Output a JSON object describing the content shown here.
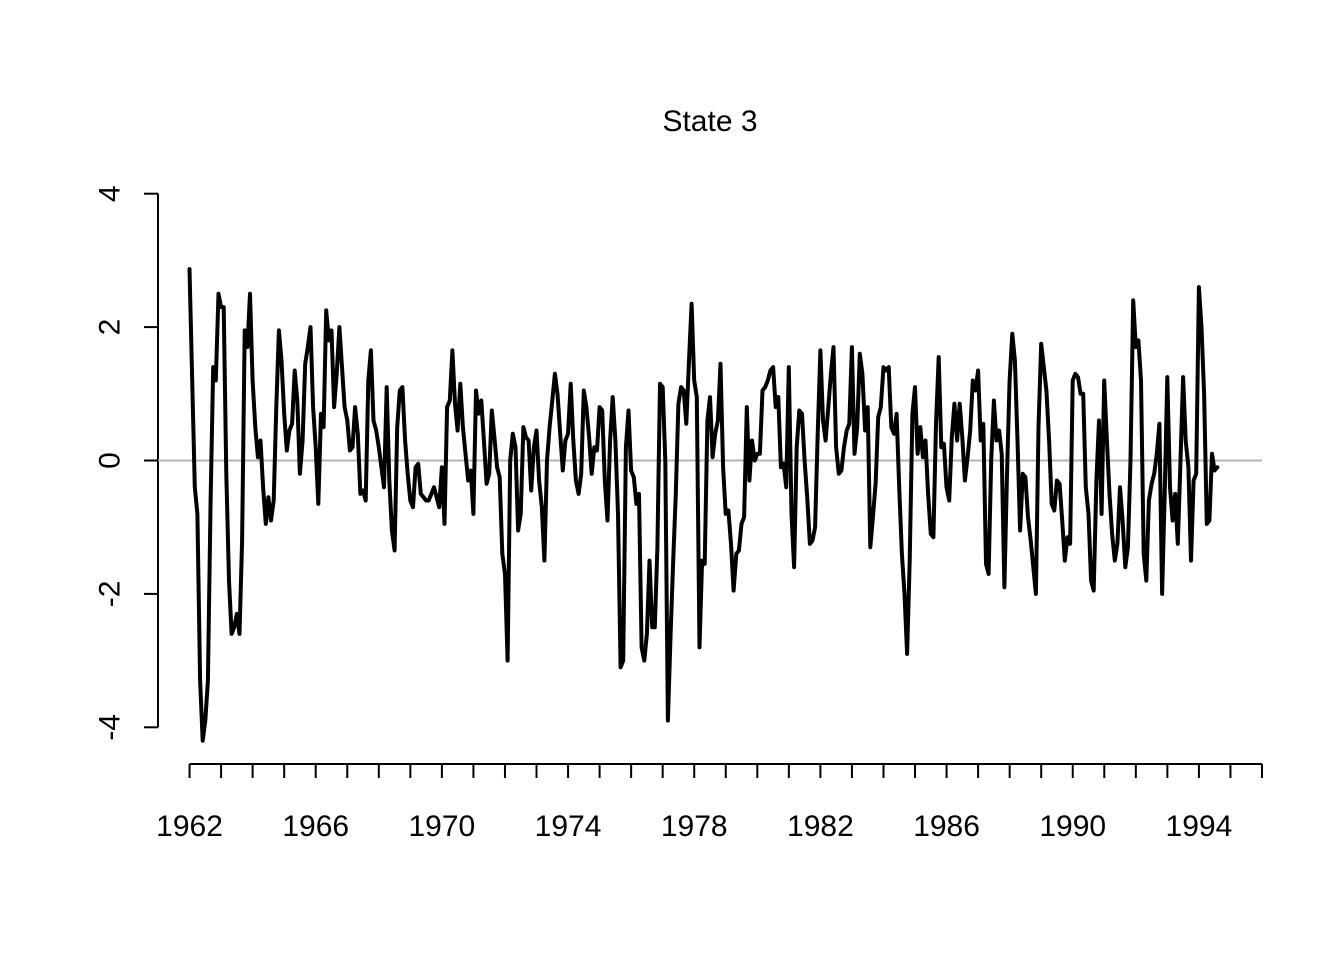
{
  "chart_data": {
    "type": "line",
    "title": "State 3",
    "xlabel": "",
    "ylabel": "",
    "xlim": [
      1961.0,
      1996.0
    ],
    "ylim": [
      -4.55,
      4.55
    ],
    "x_ticks": [
      1962,
      1963,
      1964,
      1965,
      1966,
      1967,
      1968,
      1969,
      1970,
      1971,
      1972,
      1973,
      1974,
      1975,
      1976,
      1977,
      1978,
      1979,
      1980,
      1981,
      1982,
      1983,
      1984,
      1985,
      1986,
      1987,
      1988,
      1989,
      1990,
      1991,
      1992,
      1993,
      1994,
      1995,
      1996
    ],
    "x_tick_labels": [
      "1962",
      "1966",
      "1970",
      "1974",
      "1978",
      "1982",
      "1986",
      "1990",
      "1994"
    ],
    "y_ticks": [
      -4,
      -2,
      0,
      2,
      4
    ],
    "y_tick_labels": [
      "-4",
      "-2",
      "0",
      "2",
      "4"
    ],
    "reference_line": {
      "y": 0,
      "color": "#b3b3b3"
    },
    "line_color": "#000000",
    "grid": false,
    "series": [
      {
        "x_start": 1962.0,
        "x_step": 0.08333,
        "values": [
          2.87,
          1.2,
          -0.4,
          -0.8,
          -3.3,
          -4.2,
          -3.9,
          -3.3,
          -0.6,
          1.4,
          1.2,
          2.5,
          2.3,
          2.3,
          -0.2,
          -1.8,
          -2.6,
          -2.5,
          -2.3,
          -2.6,
          -1.2,
          1.95,
          1.7,
          2.5,
          1.2,
          0.5,
          0.05,
          0.3,
          -0.4,
          -0.95,
          -0.55,
          -0.9,
          -0.6,
          0.8,
          1.95,
          1.5,
          0.7,
          0.15,
          0.45,
          0.55,
          1.35,
          0.9,
          -0.2,
          0.3,
          1.45,
          1.7,
          2.0,
          0.8,
          0.2,
          -0.65,
          0.7,
          0.5,
          2.25,
          1.8,
          1.95,
          0.8,
          1.3,
          2.0,
          1.4,
          0.8,
          0.6,
          0.15,
          0.2,
          0.8,
          0.4,
          -0.5,
          -0.45,
          -0.6,
          1.2,
          1.65,
          0.6,
          0.45,
          0.2,
          -0.1,
          -0.4,
          1.1,
          -0.3,
          -1.05,
          -1.35,
          0.5,
          1.05,
          1.1,
          0.3,
          -0.2,
          -0.6,
          -0.7,
          -0.1,
          -0.05,
          -0.5,
          -0.55,
          -0.6,
          -0.6,
          -0.5,
          -0.4,
          -0.55,
          -0.7,
          -0.1,
          -0.95,
          0.8,
          0.9,
          1.65,
          0.85,
          0.45,
          1.15,
          0.5,
          0.1,
          -0.3,
          -0.15,
          -0.8,
          1.05,
          0.7,
          0.9,
          0.3,
          -0.35,
          -0.2,
          0.75,
          0.35,
          -0.1,
          -0.25,
          -1.4,
          -1.7,
          -3.0,
          0.0,
          0.4,
          0.2,
          -1.05,
          -0.8,
          0.5,
          0.35,
          0.3,
          -0.45,
          0.2,
          0.45,
          -0.3,
          -0.7,
          -1.5,
          0.0,
          0.5,
          0.9,
          1.3,
          1.0,
          0.4,
          -0.15,
          0.3,
          0.4,
          1.15,
          0.3,
          -0.3,
          -0.5,
          -0.2,
          1.05,
          0.8,
          0.35,
          -0.2,
          0.2,
          0.15,
          0.8,
          0.75,
          -0.3,
          -0.9,
          0.3,
          0.95,
          0.3,
          -0.8,
          -3.1,
          -3.0,
          0.2,
          0.75,
          -0.15,
          -0.25,
          -0.65,
          -0.5,
          -2.8,
          -3.0,
          -2.6,
          -1.5,
          -2.5,
          -2.5,
          -1.3,
          1.15,
          1.1,
          0.0,
          -3.9,
          -2.6,
          -1.5,
          -0.5,
          0.85,
          1.1,
          1.05,
          0.55,
          1.5,
          2.35,
          1.2,
          0.95,
          -2.8,
          -1.5,
          -1.55,
          0.6,
          0.95,
          0.05,
          0.4,
          0.6,
          1.45,
          -0.1,
          -0.8,
          -0.75,
          -1.25,
          -1.95,
          -1.4,
          -1.35,
          -0.95,
          -0.85,
          0.8,
          -0.3,
          0.3,
          0.0,
          0.1,
          0.1,
          1.05,
          1.1,
          1.2,
          1.35,
          1.4,
          0.8,
          0.95,
          -0.1,
          -0.05,
          -0.4,
          1.4,
          -0.8,
          -1.6,
          0.2,
          0.75,
          0.7,
          0.0,
          -0.55,
          -1.25,
          -1.2,
          -1.0,
          0.4,
          1.65,
          0.6,
          0.3,
          0.8,
          1.3,
          1.7,
          0.2,
          -0.2,
          -0.15,
          0.2,
          0.45,
          0.55,
          1.7,
          0.1,
          0.5,
          1.6,
          1.3,
          0.45,
          0.8,
          -1.3,
          -0.85,
          -0.35,
          0.65,
          0.8,
          1.4,
          1.35,
          1.4,
          0.5,
          0.4,
          0.7,
          -0.4,
          -1.4,
          -2.0,
          -2.9,
          -1.5,
          0.7,
          1.1,
          0.1,
          0.5,
          0.05,
          0.3,
          -0.5,
          -1.1,
          -1.15,
          0.55,
          1.55,
          0.2,
          0.25,
          -0.4,
          -0.6,
          0.35,
          0.85,
          0.3,
          0.85,
          0.35,
          -0.3,
          0.05,
          0.45,
          1.2,
          1.05,
          1.35,
          0.3,
          0.55,
          -1.55,
          -1.7,
          0.0,
          0.9,
          0.3,
          0.45,
          0.1,
          -1.9,
          -0.2,
          1.2,
          1.9,
          1.5,
          0.3,
          -1.05,
          -0.2,
          -0.25,
          -0.85,
          -1.2,
          -1.6,
          -2.0,
          0.5,
          1.75,
          1.4,
          1.05,
          0.3,
          -0.65,
          -0.75,
          -0.3,
          -0.35,
          -0.9,
          -1.5,
          -1.15,
          -1.25,
          1.2,
          1.3,
          1.25,
          1.0,
          1.0,
          -0.4,
          -0.8,
          -1.8,
          -1.95,
          -0.3,
          0.6,
          -0.8,
          1.2,
          0.3,
          -0.5,
          -1.1,
          -1.5,
          -1.25,
          -0.4,
          -0.9,
          -1.6,
          -1.3,
          0.0,
          2.4,
          1.7,
          1.8,
          1.2,
          -1.4,
          -1.8,
          -0.6,
          -0.35,
          -0.2,
          0.1,
          0.55,
          -2.0,
          -0.5,
          1.25,
          -0.4,
          -0.9,
          -0.5,
          -1.25,
          0.0,
          1.25,
          0.3,
          -0.1,
          -1.5,
          -0.3,
          -0.2,
          2.6,
          2.0,
          1.0,
          -0.95,
          -0.9,
          0.1,
          -0.15,
          -0.1
        ]
      }
    ]
  }
}
